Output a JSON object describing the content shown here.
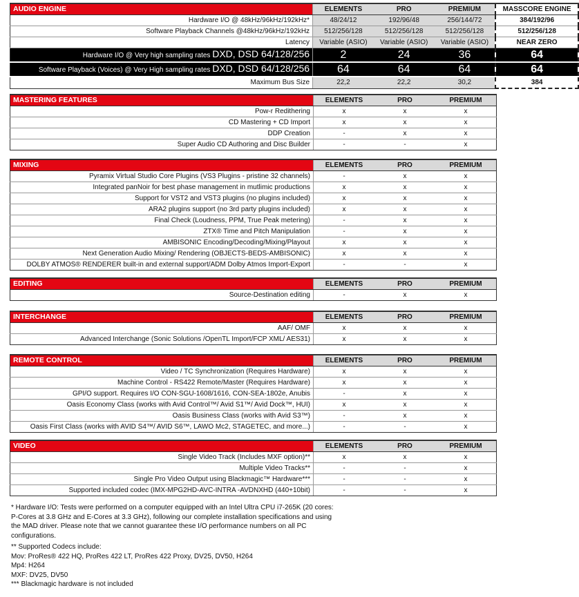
{
  "audio_engine": {
    "title": "AUDIO ENGINE",
    "columns": [
      "ELEMENTS",
      "PRO",
      "PREMIUM",
      "MASSCORE ENGINE"
    ],
    "rows": [
      {
        "label": "Hardware I/O @ 48kHz/96kHz/192kHz*",
        "values": [
          "48/24/12",
          "192/96/48",
          "256/144/72",
          "384/192/96"
        ]
      },
      {
        "label": "Software Playback Channels @48kHz/96kHz/192kHz",
        "values": [
          "512/256/128",
          "512/256/128",
          "512/256/128",
          "512/256/128"
        ]
      },
      {
        "label": "Latency",
        "values": [
          "Variable (ASIO)",
          "Variable (ASIO)",
          "Variable (ASIO)",
          "NEAR ZERO"
        ]
      },
      {
        "label": "Hardware I/O @ Very high sampling rates",
        "label_big": "DXD, DSD 64/128/256",
        "highlight": true,
        "values": [
          "2",
          "24",
          "36",
          "64"
        ]
      },
      {
        "label": "Software Playback (Voices) @ Very High sampling rates",
        "label_big": "DXD, DSD 64/128/256",
        "highlight": true,
        "values": [
          "64",
          "64",
          "64",
          "64"
        ]
      },
      {
        "label": "Maximum Bus Size",
        "values": [
          "22,2",
          "22,2",
          "30,2",
          "384"
        ]
      }
    ]
  },
  "sections": [
    {
      "title": "MASTERING FEATURES",
      "columns": [
        "ELEMENTS",
        "PRO",
        "PREMIUM"
      ],
      "rows": [
        {
          "label": "Pow-r Redithering",
          "values": [
            "x",
            "x",
            "x"
          ]
        },
        {
          "label": "CD Mastering + CD Import",
          "values": [
            "x",
            "x",
            "x"
          ]
        },
        {
          "label": "DDP Creation",
          "values": [
            "-",
            "x",
            "x"
          ]
        },
        {
          "label": "Super Audio CD Authoring and Disc Builder",
          "values": [
            "-",
            "-",
            "x"
          ]
        }
      ]
    },
    {
      "title": "MIXING",
      "columns": [
        "ELEMENTS",
        "PRO",
        "PREMIUM"
      ],
      "rows": [
        {
          "label": "Pyramix Virtual Studio Core Plugins (VS3 Plugins - pristine 32 channels)",
          "values": [
            "-",
            "x",
            "x"
          ]
        },
        {
          "label": "Integrated panNoir for best phase management in mutlimic productions",
          "values": [
            "x",
            "x",
            "x"
          ]
        },
        {
          "label": "Support for VST2 and VST3 plugins (no plugins included)",
          "values": [
            "x",
            "x",
            "x"
          ]
        },
        {
          "label": "ARA2 plugins support (no 3rd party plugins included)",
          "values": [
            "x",
            "x",
            "x"
          ]
        },
        {
          "label": "Final Check (Loudness, PPM, True Peak metering)",
          "values": [
            "-",
            "x",
            "x"
          ]
        },
        {
          "label": "ZTX® Time and Pitch Manipulation",
          "values": [
            "-",
            "x",
            "x"
          ]
        },
        {
          "label": "AMBISONIC Encoding/Decoding/Mixing/Playout",
          "values": [
            "x",
            "x",
            "x"
          ]
        },
        {
          "label": "Next Generation Audio Mixing/ Rendering (OBJECTS-BEDS-AMBISONIC)",
          "values": [
            "x",
            "x",
            "x"
          ]
        },
        {
          "label": "DOLBY ATMOS® RENDERER built-in and external support/ADM Dolby Atmos Import-Export",
          "values": [
            "-",
            "-",
            "x"
          ]
        }
      ]
    },
    {
      "title": "EDITING",
      "columns": [
        "ELEMENTS",
        "PRO",
        "PREMIUM"
      ],
      "rows": [
        {
          "label": "Source-Destination editing",
          "values": [
            "-",
            "x",
            "x"
          ]
        }
      ]
    },
    {
      "title": "INTERCHANGE",
      "columns": [
        "ELEMENTS",
        "PRO",
        "PREMIUM"
      ],
      "rows": [
        {
          "label": "AAF/ OMF",
          "values": [
            "x",
            "x",
            "x"
          ]
        },
        {
          "label": "Advanced Interchange (Sonic Solutions /OpenTL Import/FCP XML/ AES31)",
          "values": [
            "x",
            "x",
            "x"
          ]
        }
      ]
    },
    {
      "title": "REMOTE CONTROL",
      "columns": [
        "ELEMENTS",
        "PRO",
        "PREMIUM"
      ],
      "rows": [
        {
          "label": "Video / TC Synchronization (Requires Hardware)",
          "values": [
            "x",
            "x",
            "x"
          ]
        },
        {
          "label": "Machine Control - RS422 Remote/Master (Requires Hardware)",
          "values": [
            "x",
            "x",
            "x"
          ]
        },
        {
          "label": "GPI/O support. Requires I/O CON-SGU-1608/1616, CON-SEA-1802e, Anubis",
          "values": [
            "-",
            "x",
            "x"
          ]
        },
        {
          "label": "Oasis Economy Class (works with Avid Control™/ Avid S1™/ Avid Dock™, HUI)",
          "values": [
            "x",
            "x",
            "x"
          ]
        },
        {
          "label": "Oasis Business Class (works with Avid S3™)",
          "values": [
            "-",
            "x",
            "x"
          ]
        },
        {
          "label": "Oasis First Class (works with AVID S4™/ AVID S6™, LAWO Mc2, STAGETEC, and more...)",
          "values": [
            "-",
            "-",
            "x"
          ]
        }
      ]
    },
    {
      "title": "VIDEO",
      "columns": [
        "ELEMENTS",
        "PRO",
        "PREMIUM"
      ],
      "rows": [
        {
          "label": "Single Video Track (Includes MXF option)**",
          "values": [
            "x",
            "x",
            "x"
          ]
        },
        {
          "label": "Multiple Video Tracks**",
          "values": [
            "-",
            "-",
            "x"
          ]
        },
        {
          "label": "Single Pro Video Output using Blackmagic™ Hardware***",
          "values": [
            "-",
            "-",
            "x"
          ]
        },
        {
          "label": "Supported included codec (IMX-MPG2HD-AVC-INTRA -AVDNXHD (440+10bit)",
          "values": [
            "-",
            "-",
            "x"
          ]
        }
      ]
    }
  ],
  "footer": [
    "* Hardware I/O: Tests were performed on a computer equipped with an Intel Ultra CPU i7-265K (20 cores: P-Cores at 3.8 GHz and E-Cores at 3.3 GHz), following our complete installation specifications and using the MAD driver. Please note that we cannot guarantee these I/O performance numbers on all PC configurations.",
    "** Supported Codecs include:",
    "Mov: ProRes® 422 HQ, ProRes 422 LT, ProRes 422 Proxy, DV25, DV50, H264",
    "Mp4: H264",
    "MXF: DV25, DV50",
    "*** Blackmagic hardware is not included"
  ],
  "colors": {
    "section_header": "#e30613",
    "column_header": "#d9d9d9",
    "highlight_row": "#000000"
  }
}
